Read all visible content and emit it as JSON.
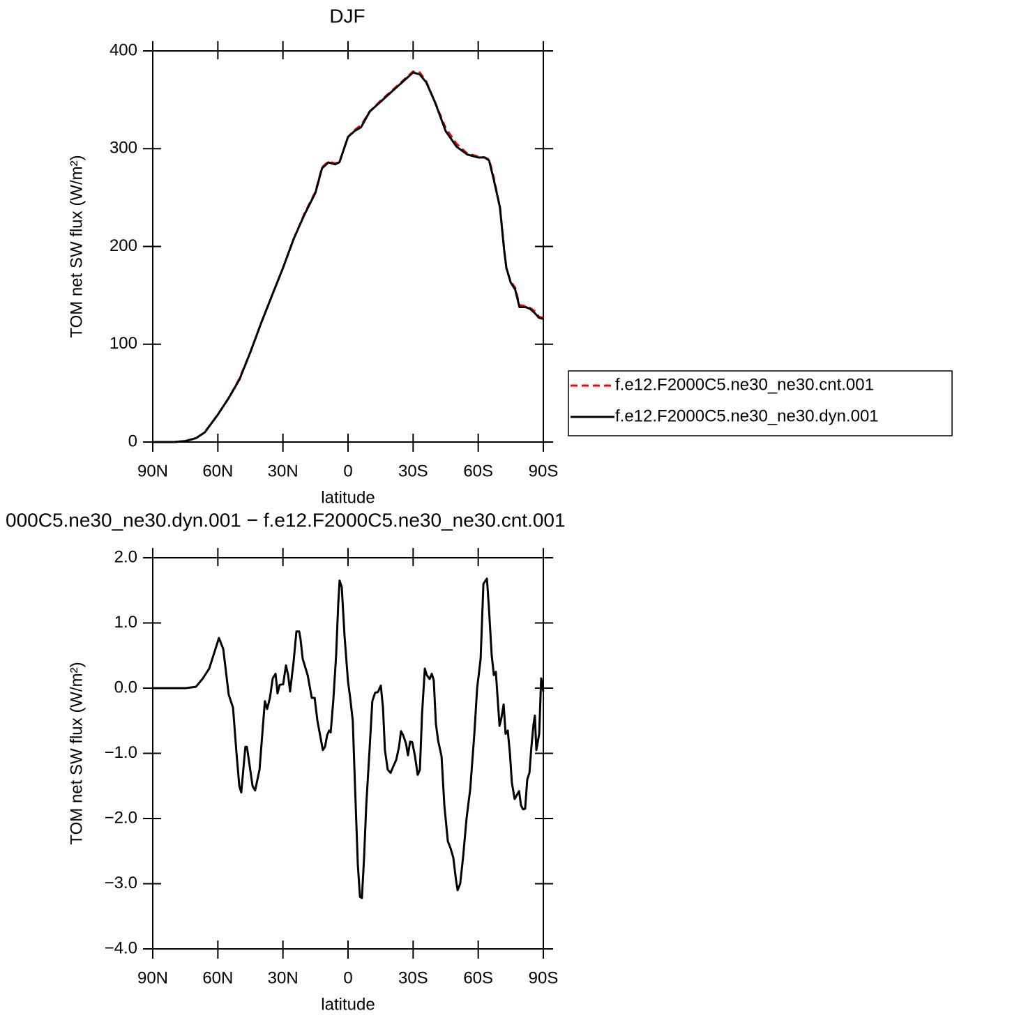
{
  "chart_data": [
    {
      "type": "line",
      "title": "DJF",
      "xlabel": "latitude",
      "ylabel": "TOM net SW flux (W/m²)",
      "x": [
        90,
        80,
        75,
        70,
        66,
        60,
        55,
        50,
        45,
        40,
        35,
        30,
        25,
        20,
        15,
        12,
        9,
        6,
        4,
        0,
        -3,
        -6,
        -10,
        -15,
        -20,
        -25,
        -28,
        -30,
        -33,
        -36,
        -40,
        -45,
        -50,
        -55,
        -60,
        -63,
        -65,
        -67,
        -70,
        -72,
        -73,
        -75,
        -77,
        -79,
        -82,
        -84,
        -86,
        -88,
        -90
      ],
      "series": [
        {
          "name": "f.e12.F2000C5.ne30_ne30.cnt.001",
          "color": "#ff0000",
          "line_style": "dashed",
          "values": [
            0,
            0,
            1,
            4,
            10,
            28,
            45,
            65,
            92,
            122,
            150,
            178,
            208,
            234,
            256,
            281,
            287,
            285,
            286,
            312,
            319,
            324,
            338,
            349,
            359,
            369,
            375,
            379,
            378,
            369,
            348,
            321,
            305,
            295,
            292,
            291,
            289,
            272,
            240,
            196,
            177,
            164,
            158,
            140,
            139,
            137,
            134,
            128,
            127
          ]
        },
        {
          "name": "f.e12.F2000C5.ne30_ne30.dyn.001",
          "color": "#000000",
          "line_style": "solid",
          "values": [
            0,
            0,
            1,
            4,
            10,
            28,
            45,
            64,
            92,
            122,
            150,
            178,
            208,
            233,
            255,
            280,
            286,
            284,
            286,
            312,
            318,
            322,
            338,
            348,
            358,
            368,
            374,
            378,
            376,
            368,
            348,
            318,
            302,
            294,
            291,
            291,
            288,
            270,
            240,
            195,
            178,
            163,
            156,
            138,
            138,
            136,
            132,
            127,
            126
          ]
        }
      ],
      "xlim": [
        90,
        -90
      ],
      "xticks": [
        {
          "value": 90,
          "label": "90N"
        },
        {
          "value": 60,
          "label": "60N"
        },
        {
          "value": 30,
          "label": "30N"
        },
        0,
        {
          "value": -30,
          "label": "30S"
        },
        {
          "value": -60,
          "label": "60S"
        },
        {
          "value": -90,
          "label": "90S"
        }
      ],
      "ylim": [
        0,
        400
      ],
      "yticks": [
        0,
        100,
        200,
        300,
        400
      ],
      "legend": "outside-right",
      "grid": false
    },
    {
      "type": "line",
      "title": "000C5.ne30_ne30.dyn.001 − f.e12.F2000C5.ne30_ne30.cnt.001",
      "xlabel": "latitude",
      "ylabel": "TOM net SW flux (W/m²)",
      "x": [
        90,
        74.9,
        70.1,
        66.9,
        64.0,
        61.1,
        59.5,
        57.5,
        55.0,
        53.0,
        51.4,
        50.1,
        49.2,
        47.3,
        46.6,
        45.3,
        44.0,
        42.8,
        40.8,
        39.5,
        38.3,
        37.3,
        36.0,
        34.7,
        33.4,
        32.5,
        31.5,
        29.9,
        28.6,
        27.6,
        26.7,
        25.1,
        23.8,
        22.5,
        21.9,
        20.9,
        18.6,
        16.7,
        15.4,
        14.1,
        12.9,
        11.6,
        10.6,
        9.6,
        8.7,
        8.0,
        6.8,
        5.5,
        4.5,
        3.9,
        2.9,
        1.6,
        0,
        -1.0,
        -2.2,
        -3.2,
        -4.5,
        -5.5,
        -6.4,
        -7.4,
        -8.4,
        -10.0,
        -11.2,
        -12.5,
        -13.8,
        -15.1,
        -16.1,
        -17.0,
        -18.3,
        -19.6,
        -20.6,
        -22.2,
        -23.5,
        -24.4,
        -25.4,
        -26.7,
        -27.6,
        -28.6,
        -29.6,
        -30.9,
        -32.1,
        -33.1,
        -34.1,
        -35.4,
        -36.3,
        -37.6,
        -38.6,
        -39.5,
        -40.5,
        -41.5,
        -43.1,
        -44.4,
        -46.0,
        -47.2,
        -48.5,
        -49.8,
        -50.5,
        -51.7,
        -53.0,
        -54.6,
        -56.3,
        -58.2,
        -59.5,
        -61.1,
        -62.4,
        -64.0,
        -64.9,
        -66.2,
        -67.2,
        -68.1,
        -69.8,
        -70.7,
        -71.7,
        -72.6,
        -73.6,
        -74.6,
        -75.5,
        -76.8,
        -78.8,
        -79.7,
        -80.7,
        -81.6,
        -82.6,
        -83.6,
        -84.5,
        -85.5,
        -86.1,
        -86.8,
        -88.1,
        -89.0,
        -90
      ],
      "values": [
        0,
        0,
        0.02,
        0.15,
        0.3,
        0.6,
        0.77,
        0.6,
        -0.1,
        -0.3,
        -1.0,
        -1.5,
        -1.6,
        -0.9,
        -0.9,
        -1.2,
        -1.5,
        -1.57,
        -1.25,
        -0.7,
        -0.2,
        -0.32,
        -0.15,
        0.15,
        0.22,
        -0.08,
        0.05,
        0.06,
        0.35,
        0.2,
        -0.05,
        0.4,
        0.87,
        0.87,
        0.75,
        0.45,
        0.2,
        -0.15,
        -0.15,
        -0.5,
        -0.72,
        -0.95,
        -0.9,
        -0.72,
        -0.65,
        -0.68,
        -0.2,
        0.5,
        1.3,
        1.65,
        1.55,
        0.8,
        0.1,
        -0.15,
        -0.5,
        -1.5,
        -2.7,
        -3.2,
        -3.22,
        -2.6,
        -1.8,
        -0.9,
        -0.2,
        -0.07,
        -0.06,
        0.04,
        -0.3,
        -0.95,
        -1.25,
        -1.3,
        -1.22,
        -1.1,
        -0.9,
        -0.66,
        -0.72,
        -0.85,
        -1.03,
        -0.82,
        -0.83,
        -1.05,
        -1.33,
        -1.25,
        -0.4,
        0.3,
        0.2,
        0.14,
        0.22,
        0.12,
        -0.55,
        -0.8,
        -1.05,
        -1.8,
        -2.35,
        -2.45,
        -2.6,
        -2.95,
        -3.1,
        -3.0,
        -2.6,
        -2.0,
        -1.55,
        -0.7,
        0.0,
        0.45,
        1.6,
        1.68,
        1.25,
        0.5,
        0.2,
        0.25,
        -0.58,
        -0.45,
        -0.25,
        -0.7,
        -0.65,
        -1.0,
        -1.45,
        -1.7,
        -1.58,
        -1.8,
        -1.86,
        -1.85,
        -1.4,
        -1.3,
        -0.9,
        -0.55,
        -0.42,
        -0.95,
        -0.7,
        0.15,
        -0.05
      ],
      "color": "#000000",
      "xlim": [
        90,
        -90
      ],
      "xticks": [
        {
          "value": 90,
          "label": "90N"
        },
        {
          "value": 60,
          "label": "60N"
        },
        {
          "value": 30,
          "label": "30N"
        },
        0,
        {
          "value": -30,
          "label": "30S"
        },
        {
          "value": -60,
          "label": "60S"
        },
        {
          "value": -90,
          "label": "90S"
        }
      ],
      "ylim": [
        -4,
        2
      ],
      "yticks": [
        {
          "value": 2,
          "label": "2.0"
        },
        {
          "value": 1,
          "label": "1.0"
        },
        {
          "value": 0,
          "label": "0.0"
        },
        {
          "value": -1,
          "label": "−1.0"
        },
        {
          "value": -2,
          "label": "−2.0"
        },
        {
          "value": -3,
          "label": "−3.0"
        },
        {
          "value": -4,
          "label": "−4.0"
        }
      ],
      "grid": false
    }
  ]
}
